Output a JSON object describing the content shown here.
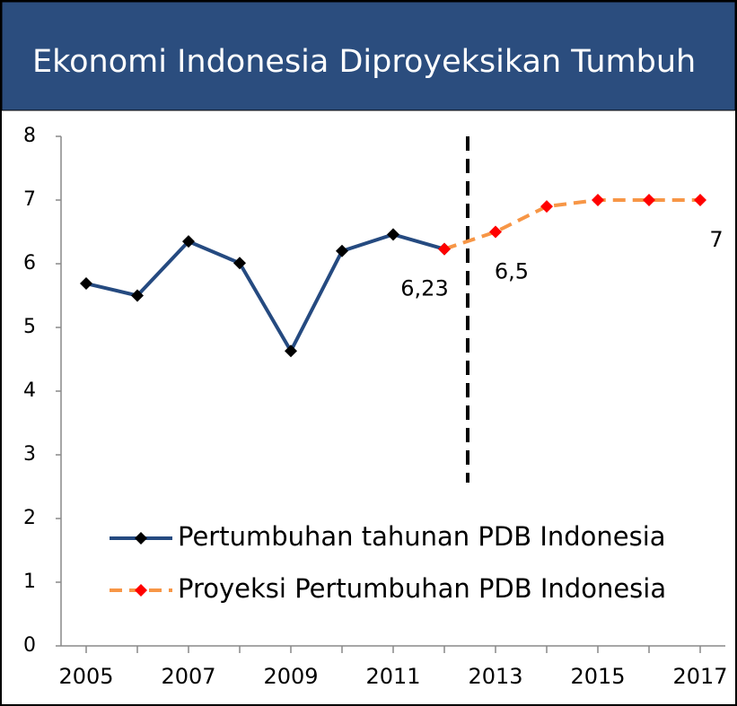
{
  "chart_data": {
    "type": "line",
    "title": "Ekonomi Indonesia Diproyeksikan Tumbuh",
    "x": [
      2005,
      2006,
      2007,
      2008,
      2009,
      2010,
      2011,
      2012,
      2013,
      2014,
      2015,
      2016,
      2017
    ],
    "series": [
      {
        "name": "Pertumbuhan tahunan PDB Indonesia",
        "color": "#254a80",
        "marker_color": "#000000",
        "dashed": false,
        "values": [
          5.69,
          5.5,
          6.35,
          6.01,
          4.63,
          6.2,
          6.46,
          6.23,
          null,
          null,
          null,
          null,
          null
        ]
      },
      {
        "name": "Proyeksi Pertumbuhan PDB Indonesia",
        "color": "#f79646",
        "marker_color": "#ff0000",
        "dashed": true,
        "values": [
          null,
          null,
          null,
          null,
          null,
          null,
          null,
          6.23,
          6.5,
          6.9,
          7,
          7,
          7
        ],
        "value_labels": [
          null,
          null,
          null,
          null,
          null,
          null,
          null,
          "6,23",
          "6,5",
          null,
          null,
          null,
          "7"
        ]
      }
    ],
    "xlim": [
      2005,
      2017
    ],
    "xticks": [
      2005,
      2007,
      2009,
      2011,
      2013,
      2015,
      2017
    ],
    "ylim": [
      0,
      8
    ],
    "yticks": [
      0,
      1,
      2,
      3,
      4,
      5,
      6,
      7,
      8
    ],
    "grid": false,
    "legend": "lower-center"
  }
}
